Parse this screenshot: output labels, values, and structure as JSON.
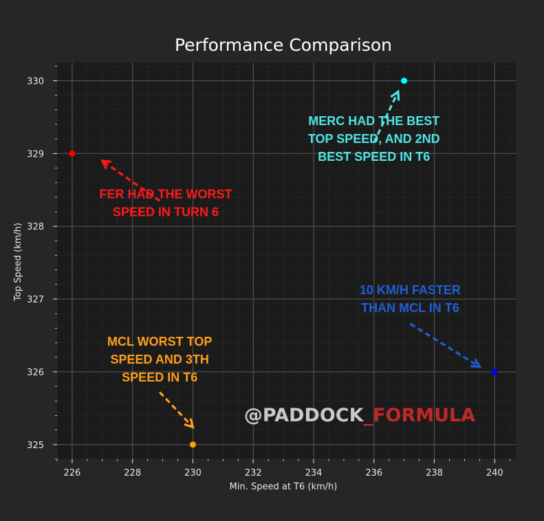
{
  "chart_data": {
    "type": "scatter",
    "title": "Performance Comparison",
    "xlabel": "Min. Speed at T6 (km/h)",
    "ylabel": "Top Speed (km/h)",
    "xlim": [
      225.5,
      240.7
    ],
    "ylim": [
      324.8,
      330.25
    ],
    "xticks": [
      226,
      228,
      230,
      232,
      234,
      236,
      238,
      240
    ],
    "yticks": [
      325,
      326,
      327,
      328,
      329,
      330
    ],
    "grid": true,
    "points": [
      {
        "x": 226,
        "y": 329,
        "color": "#ff0000"
      },
      {
        "x": 230,
        "y": 325,
        "color": "#ffa500"
      },
      {
        "x": 237,
        "y": 330,
        "color": "#00ffff"
      },
      {
        "x": 240,
        "y": 326,
        "color": "#0000ff"
      }
    ],
    "annotations": [
      {
        "lines": [
          "FER HAD THE WORST",
          "SPEED IN TURN 6"
        ],
        "color": "#ff1a1a",
        "point_index": 0
      },
      {
        "lines": [
          "MCL WORST TOP",
          "SPEED AND 3TH",
          "SPEED IN T6"
        ],
        "color": "#ff9f1a",
        "point_index": 1
      },
      {
        "lines": [
          "MERC HAD THE BEST",
          "TOP SPEED, AND 2ND",
          "BEST SPEED IN T6"
        ],
        "color": "#4ee6e6",
        "point_index": 2
      },
      {
        "lines": [
          "10 KM/H FASTER",
          "THAN MCL IN T6"
        ],
        "color": "#1f5fd6",
        "point_index": 3
      }
    ],
    "watermark": {
      "part1": "@PADDOCK",
      "part2": "_FORMULA",
      "color1": "#c9c9c9",
      "color2": "#c0282a"
    }
  },
  "colors": {
    "background": "#282625",
    "plot_background": "#1c1b1b",
    "text": "#e6e6e6"
  }
}
